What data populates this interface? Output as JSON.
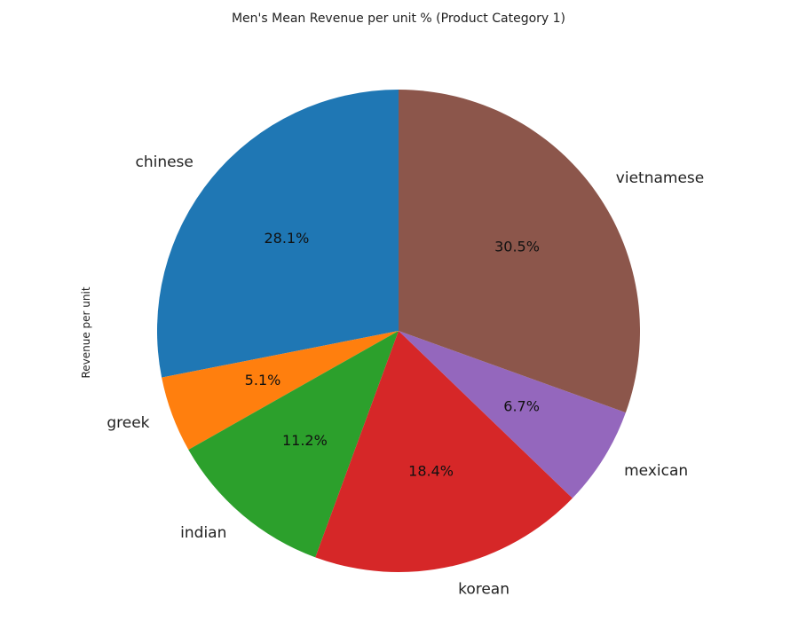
{
  "chart_data": {
    "type": "pie",
    "title": "Men's Mean Revenue per unit % (Product Category 1)",
    "ylabel": "Revenue per unit",
    "legend": "none",
    "start_angle_deg": 90,
    "direction": "counterclockwise",
    "slices": [
      {
        "label": "chinese",
        "value": 28.1,
        "pct_label": "28.1%",
        "color": "#1f77b4"
      },
      {
        "label": "greek",
        "value": 5.1,
        "pct_label": "5.1%",
        "color": "#ff7f0e"
      },
      {
        "label": "indian",
        "value": 11.2,
        "pct_label": "11.2%",
        "color": "#2ca02c"
      },
      {
        "label": "korean",
        "value": 18.4,
        "pct_label": "18.4%",
        "color": "#d62728"
      },
      {
        "label": "mexican",
        "value": 6.7,
        "pct_label": "6.7%",
        "color": "#9467bd"
      },
      {
        "label": "vietnamese",
        "value": 30.5,
        "pct_label": "30.5%",
        "color": "#8c564b"
      }
    ]
  }
}
